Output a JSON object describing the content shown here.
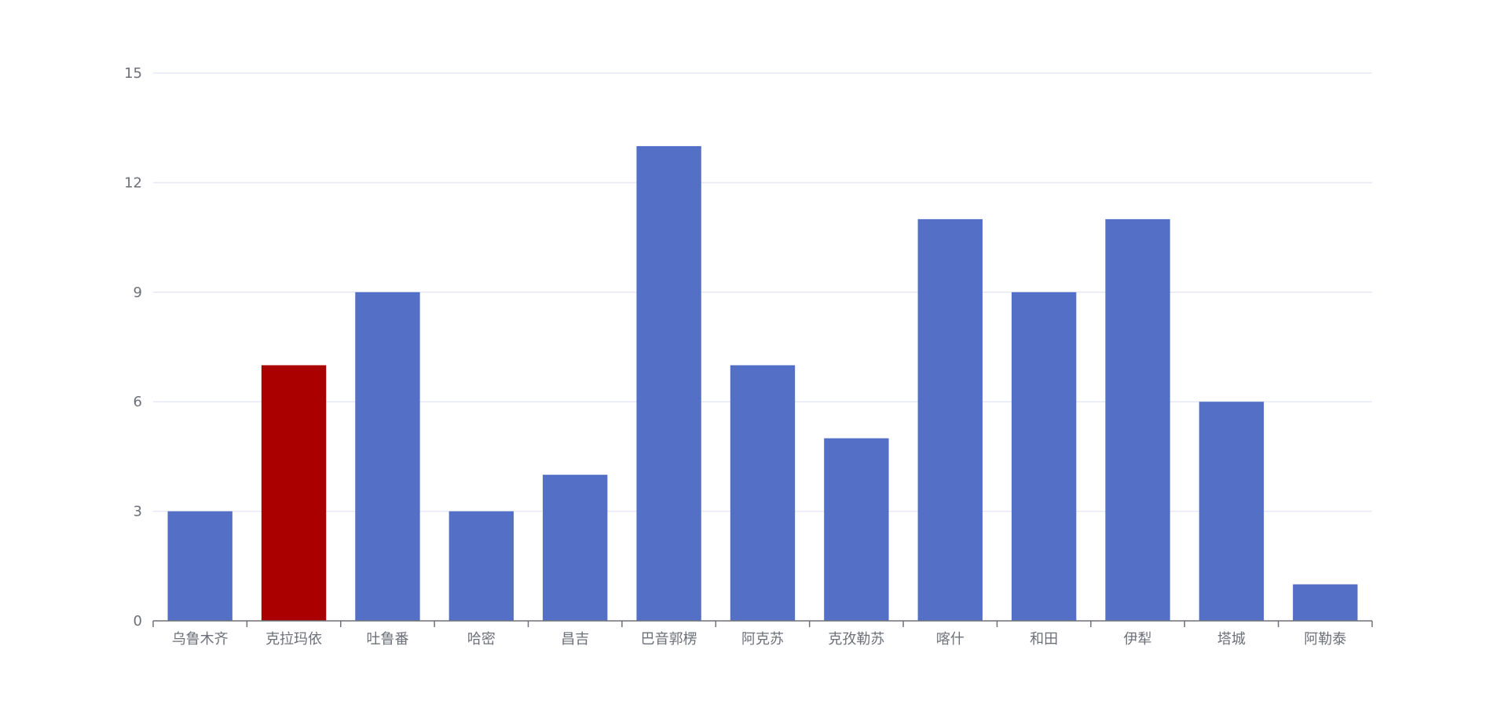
{
  "chart_data": {
    "type": "bar",
    "categories": [
      "乌鲁木齐",
      "克拉玛依",
      "吐鲁番",
      "哈密",
      "昌吉",
      "巴音郭楞",
      "阿克苏",
      "克孜勒苏",
      "喀什",
      "和田",
      "伊犁",
      "塔城",
      "阿勒泰"
    ],
    "values": [
      3,
      7,
      9,
      3,
      4,
      13,
      7,
      5,
      11,
      9,
      11,
      6,
      1
    ],
    "highlight_index": 1,
    "ylim": [
      0,
      15
    ],
    "yticks": [
      "0",
      "3",
      "6",
      "9",
      "12",
      "15"
    ],
    "grid": true,
    "colors": {
      "bar": "#5470c6",
      "highlight": "#aa0000",
      "grid": "#e6e8f5",
      "axis": "#6e7079",
      "text": "#6e7079"
    }
  }
}
